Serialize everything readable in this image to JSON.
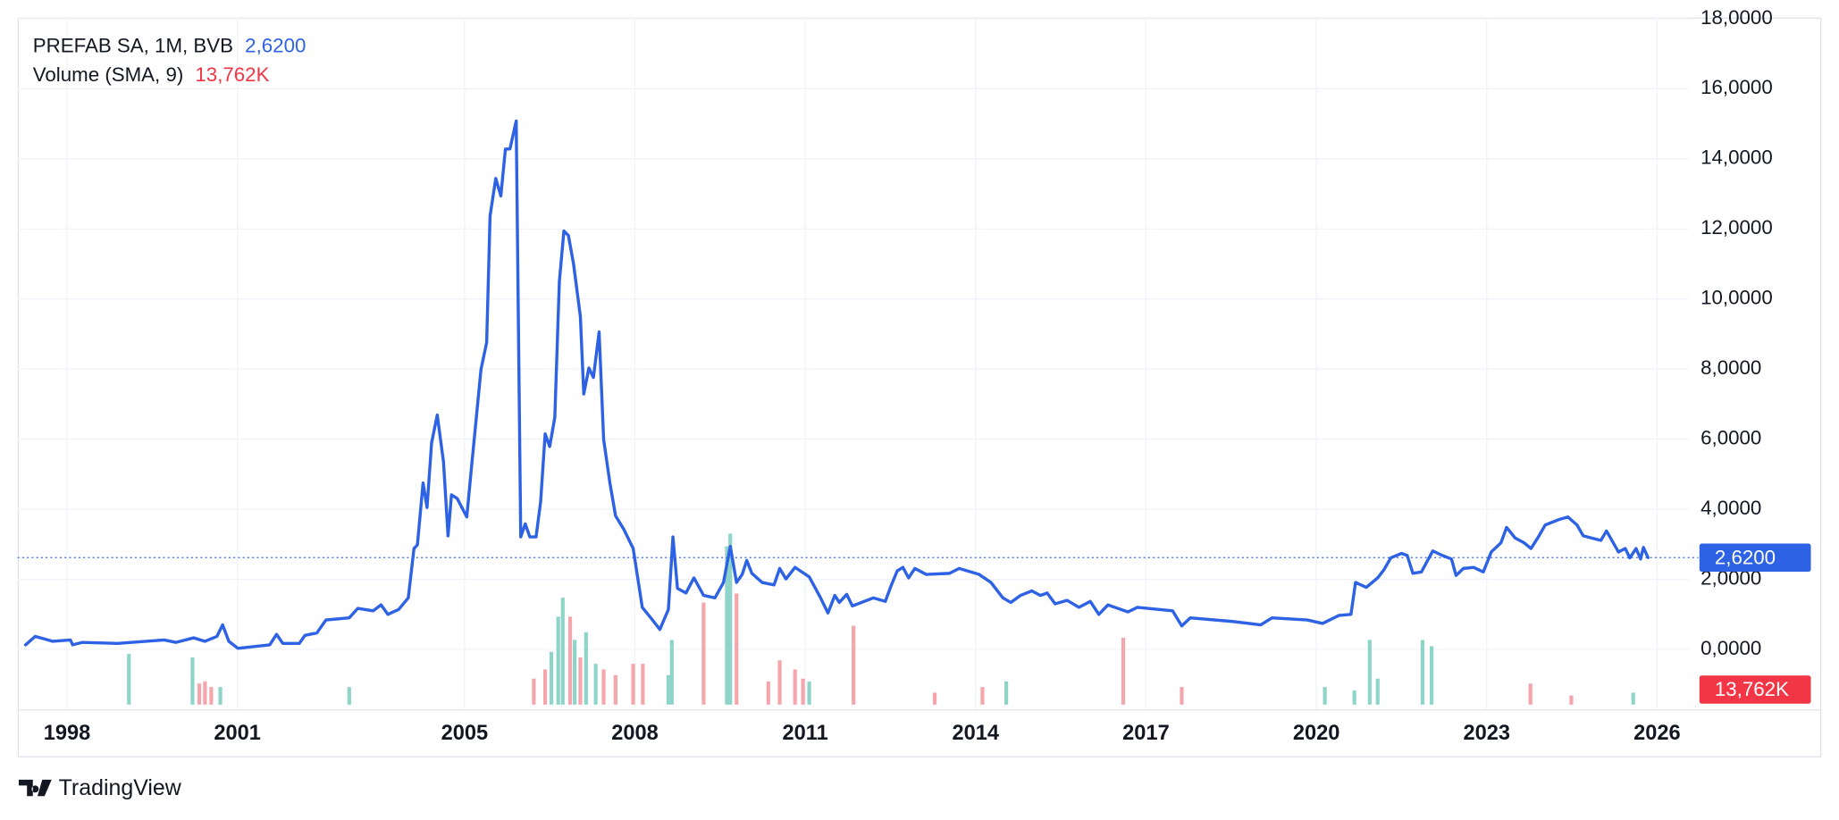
{
  "chart_data": {
    "type": "line",
    "title": "PREFAB SA, 1M, BVB",
    "xlim": [
      1997.13,
      2026.56
    ],
    "xticks": [
      1998,
      2001,
      2005,
      2008,
      2011,
      2014,
      2017,
      2020,
      2023,
      2026
    ],
    "ylim": [
      -1.71,
      18.03
    ],
    "yticks": [
      {
        "value": 0,
        "label": "0,0000"
      },
      {
        "value": 2,
        "label": "2,0000"
      },
      {
        "value": 4,
        "label": "4,0000"
      },
      {
        "value": 6,
        "label": "6,0000"
      },
      {
        "value": 8,
        "label": "8,0000"
      },
      {
        "value": 10,
        "label": "10,0000"
      },
      {
        "value": 12,
        "label": "12,0000"
      },
      {
        "value": 14,
        "label": "14,0000"
      },
      {
        "value": 16,
        "label": "16,0000"
      },
      {
        "value": 18,
        "label": "18,0000"
      }
    ],
    "grid": true,
    "x": [
      1997.27,
      1997.44,
      1997.6,
      1997.75,
      1998.06,
      1998.1,
      1998.27,
      1998.89,
      1999.71,
      1999.92,
      2000.23,
      2000.43,
      2000.64,
      2000.74,
      2000.85,
      2001.01,
      2001.57,
      2001.69,
      2001.8,
      2002.09,
      2002.19,
      2002.4,
      2002.56,
      2002.97,
      2003.12,
      2003.39,
      2003.53,
      2003.65,
      2003.84,
      2004.01,
      2004.11,
      2004.17,
      2004.27,
      2004.34,
      2004.42,
      2004.52,
      2004.63,
      2004.71,
      2004.77,
      2004.87,
      2005.04,
      2005.12,
      2005.29,
      2005.39,
      2005.45,
      2005.55,
      2005.64,
      2005.72,
      2005.8,
      2005.91,
      2005.99,
      2006.07,
      2006.15,
      2006.26,
      2006.34,
      2006.42,
      2006.5,
      2006.59,
      2006.67,
      2006.75,
      2006.83,
      2006.92,
      2007.04,
      2007.1,
      2007.19,
      2007.27,
      2007.37,
      2007.45,
      2007.56,
      2007.66,
      2007.8,
      2007.97,
      2008.13,
      2008.28,
      2008.44,
      2008.59,
      2008.67,
      2008.75,
      2008.9,
      2009.04,
      2009.21,
      2009.41,
      2009.56,
      2009.68,
      2009.79,
      2009.89,
      2009.97,
      2010.06,
      2010.24,
      2010.45,
      2010.55,
      2010.66,
      2010.82,
      2011.07,
      2011.27,
      2011.4,
      2011.52,
      2011.6,
      2011.73,
      2011.83,
      2012.2,
      2012.41,
      2012.51,
      2012.62,
      2012.72,
      2012.82,
      2012.93,
      2013.13,
      2013.54,
      2013.71,
      2014.06,
      2014.27,
      2014.48,
      2014.62,
      2014.79,
      2014.99,
      2015.14,
      2015.26,
      2015.4,
      2015.61,
      2015.82,
      2016.02,
      2016.17,
      2016.33,
      2016.68,
      2016.85,
      2017.47,
      2017.63,
      2017.78,
      2018.5,
      2019.02,
      2019.22,
      2019.84,
      2020.11,
      2020.4,
      2020.61,
      2020.69,
      2020.88,
      2021.08,
      2021.19,
      2021.31,
      2021.5,
      2021.6,
      2021.7,
      2021.85,
      2022.05,
      2022.22,
      2022.38,
      2022.46,
      2022.59,
      2022.77,
      2022.94,
      2023.08,
      2023.25,
      2023.35,
      2023.5,
      2023.66,
      2023.78,
      2023.91,
      2024.03,
      2024.28,
      2024.43,
      2024.59,
      2024.7,
      2025.01,
      2025.11,
      2025.32,
      2025.44,
      2025.52,
      2025.63,
      2025.71,
      2025.76,
      2025.84
    ],
    "series": [
      {
        "name": "PREFAB SA, 1M, BVB",
        "color": "#2e62e4",
        "values": [
          0.13,
          0.37,
          0.3,
          0.23,
          0.27,
          0.13,
          0.2,
          0.17,
          0.27,
          0.2,
          0.33,
          0.23,
          0.37,
          0.7,
          0.23,
          0.03,
          0.13,
          0.43,
          0.17,
          0.17,
          0.4,
          0.47,
          0.84,
          0.9,
          1.17,
          1.1,
          1.27,
          1.0,
          1.14,
          1.47,
          2.88,
          2.98,
          4.75,
          4.05,
          5.89,
          6.69,
          5.35,
          3.24,
          4.41,
          4.31,
          3.78,
          5.15,
          7.99,
          8.76,
          12.37,
          13.44,
          12.94,
          14.28,
          14.28,
          15.08,
          3.21,
          3.58,
          3.21,
          3.21,
          4.21,
          6.15,
          5.79,
          6.62,
          10.5,
          11.94,
          11.81,
          11.0,
          9.5,
          7.29,
          8.03,
          7.76,
          9.06,
          5.99,
          4.75,
          3.81,
          3.44,
          2.88,
          1.2,
          0.9,
          0.57,
          1.14,
          3.21,
          1.74,
          1.61,
          2.04,
          1.54,
          1.47,
          1.91,
          2.94,
          1.91,
          2.14,
          2.54,
          2.17,
          1.91,
          1.84,
          2.31,
          2.01,
          2.34,
          2.07,
          1.47,
          1.04,
          1.54,
          1.34,
          1.57,
          1.24,
          1.47,
          1.37,
          1.81,
          2.24,
          2.34,
          2.04,
          2.31,
          2.14,
          2.17,
          2.31,
          2.14,
          1.91,
          1.47,
          1.34,
          1.54,
          1.67,
          1.54,
          1.61,
          1.3,
          1.4,
          1.2,
          1.37,
          1.0,
          1.27,
          1.07,
          1.2,
          1.1,
          0.67,
          0.9,
          0.8,
          0.7,
          0.9,
          0.84,
          0.74,
          0.97,
          1.0,
          1.91,
          1.77,
          2.04,
          2.27,
          2.61,
          2.74,
          2.68,
          2.17,
          2.21,
          2.81,
          2.68,
          2.58,
          2.11,
          2.31,
          2.34,
          2.21,
          2.78,
          3.04,
          3.48,
          3.18,
          3.04,
          2.88,
          3.21,
          3.55,
          3.71,
          3.78,
          3.55,
          3.24,
          3.11,
          3.38,
          2.78,
          2.88,
          2.61,
          2.88,
          2.58,
          2.91,
          2.62
        ]
      }
    ],
    "last_value": {
      "value": 2.62,
      "label": "2,6200"
    },
    "volume": {
      "name": "Volume (SMA, 9)",
      "sma": {
        "value": 13762,
        "label": "13,762K"
      },
      "sma_color": "#f23645",
      "ylim": [
        0,
        2500000
      ],
      "up": {
        "color": "#8fd4c8",
        "x": [
          1999.09,
          2000.21,
          2000.7,
          2002.97,
          2006.53,
          2006.65,
          2006.73,
          2006.94,
          2007.14,
          2007.31,
          2008.59,
          2008.65,
          2009.62,
          2009.68,
          2011.07,
          2014.54,
          2020.15,
          2020.67,
          2020.94,
          2021.08,
          2021.87,
          2022.03,
          2025.58
        ],
        "values": [
          720000,
          670000,
          250000,
          250000,
          750000,
          1250000,
          1520000,
          920000,
          1030000,
          580000,
          420000,
          920000,
          2250000,
          2430000,
          330000,
          330000,
          250000,
          200000,
          920000,
          370000,
          920000,
          830000,
          170000
        ]
      },
      "down": {
        "color": "#f5a6ac",
        "x": [
          2000.33,
          2000.43,
          2000.54,
          2006.22,
          2006.42,
          2006.86,
          2007.04,
          2007.45,
          2007.66,
          2007.97,
          2008.14,
          2009.21,
          2009.79,
          2010.35,
          2010.55,
          2010.82,
          2010.96,
          2011.85,
          2013.28,
          2014.12,
          2016.6,
          2017.63,
          2023.77,
          2024.49
        ],
        "values": [
          300000,
          330000,
          250000,
          370000,
          500000,
          1250000,
          670000,
          500000,
          420000,
          580000,
          580000,
          1450000,
          1580000,
          330000,
          630000,
          500000,
          370000,
          1120000,
          170000,
          250000,
          950000,
          250000,
          300000,
          130000
        ]
      }
    }
  },
  "footer": {
    "brand": "TradingView"
  }
}
